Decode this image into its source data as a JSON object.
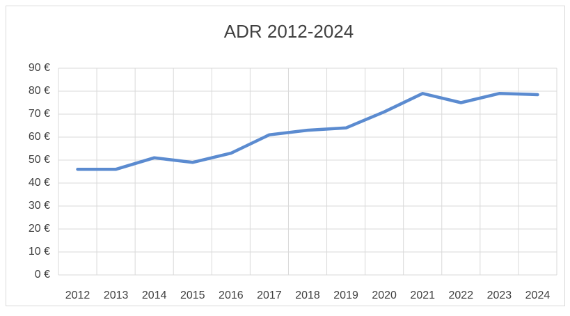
{
  "chart_data": {
    "type": "line",
    "title": "ADR 2012-2024",
    "categories": [
      "2012",
      "2013",
      "2014",
      "2015",
      "2016",
      "2017",
      "2018",
      "2019",
      "2020",
      "2021",
      "2022",
      "2023",
      "2024"
    ],
    "series": [
      {
        "name": "ADR",
        "color": "#5b8bd0",
        "values": [
          46,
          46,
          51,
          49,
          53,
          61,
          63,
          64,
          71,
          79,
          75,
          79,
          78.5
        ]
      }
    ],
    "ylim": [
      0,
      90
    ],
    "yticks": [
      {
        "value": 0,
        "label": "0 €"
      },
      {
        "value": 10,
        "label": "10 €"
      },
      {
        "value": 20,
        "label": "20 €"
      },
      {
        "value": 30,
        "label": "30 €"
      },
      {
        "value": 40,
        "label": "40 €"
      },
      {
        "value": 50,
        "label": "50 €"
      },
      {
        "value": 60,
        "label": "60 €"
      },
      {
        "value": 70,
        "label": "70 €"
      },
      {
        "value": 80,
        "label": "80 €"
      },
      {
        "value": 90,
        "label": "90 €"
      }
    ],
    "grid": true
  }
}
